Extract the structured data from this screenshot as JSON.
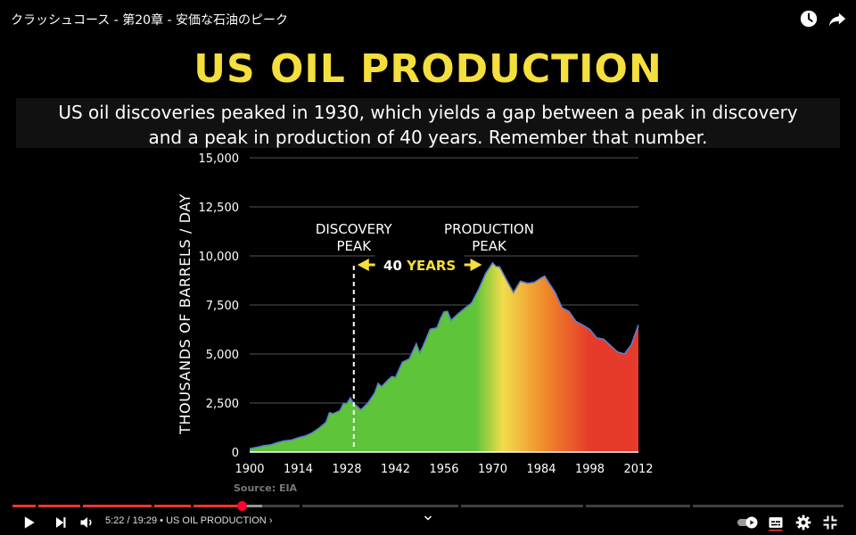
{
  "video": {
    "title": "クラッシュコース - 第20章 - 安価な石油のピーク"
  },
  "icons": {
    "watch_later": "clock-icon",
    "share": "share-icon",
    "play": "play-icon",
    "next": "next-icon",
    "volume": "volume-icon",
    "autoplay": "autoplay-toggle-icon",
    "subtitles": "subtitles-icon",
    "settings": "gear-icon",
    "exit_fullscreen": "exit-fullscreen-icon",
    "chevron": "chevron-down-icon"
  },
  "caption": {
    "line1": "US oil discoveries peaked in 1930, which yields a gap between a peak in discovery",
    "line2": "and a peak in production of 40 years. Remember that number."
  },
  "player": {
    "time_current": "5:22",
    "time_separator": " / ",
    "time_total": "19:29",
    "chapter_separator": " • ",
    "chapter": "US OIL PRODUCTION",
    "chapter_chevron": " ›",
    "played_fraction": 0.2755,
    "buffered_fraction": 0.3
  },
  "colors": {
    "title_yellow": "#f4df3c",
    "area_green": "#5ec43a",
    "area_yellow": "#f3dc4a",
    "area_orange": "#f08a2a",
    "area_red": "#e63a2a",
    "outline_blue": "#5b7fd0",
    "progress_red": "#e33333"
  },
  "chart_data": {
    "type": "area",
    "title": "US OIL PRODUCTION",
    "ylabel": "THOUSANDS OF BARRELS / DAY",
    "xlabel": "",
    "source": "Source: EIA",
    "xlim": [
      1900,
      2012
    ],
    "ylim": [
      0,
      15000
    ],
    "xticks": [
      "1900",
      "1914",
      "1928",
      "1942",
      "1956",
      "1970",
      "1984",
      "1998",
      "2012"
    ],
    "yticks": [
      "0",
      "2,500",
      "5,000",
      "7,500",
      "10,000",
      "12,500",
      "15,000"
    ],
    "grid": true,
    "x": [
      1900,
      1902,
      1904,
      1906,
      1908,
      1910,
      1912,
      1914,
      1916,
      1918,
      1920,
      1922,
      1923,
      1924,
      1926,
      1927,
      1928,
      1929,
      1930,
      1931,
      1932,
      1934,
      1936,
      1937,
      1938,
      1940,
      1941,
      1942,
      1944,
      1946,
      1948,
      1949,
      1950,
      1952,
      1954,
      1955,
      1956,
      1957,
      1958,
      1960,
      1962,
      1964,
      1966,
      1968,
      1970,
      1971,
      1972,
      1974,
      1976,
      1978,
      1980,
      1982,
      1984,
      1985,
      1986,
      1988,
      1990,
      1992,
      1994,
      1996,
      1998,
      2000,
      2002,
      2004,
      2006,
      2008,
      2010,
      2012
    ],
    "series": [
      {
        "values": [
          170,
          240,
          320,
          370,
          480,
          570,
          610,
          730,
          820,
          980,
          1220,
          1520,
          2010,
          1950,
          2110,
          2470,
          2470,
          2760,
          2460,
          2330,
          2150,
          2490,
          3000,
          3500,
          3330,
          3700,
          3850,
          3800,
          4580,
          4750,
          5520,
          5050,
          5410,
          6260,
          6340,
          6810,
          7150,
          7170,
          6710,
          7040,
          7330,
          7610,
          8300,
          9100,
          9640,
          9460,
          9440,
          8770,
          8130,
          8710,
          8600,
          8650,
          8880,
          8970,
          8680,
          8140,
          7350,
          7170,
          6660,
          6470,
          6250,
          5820,
          5750,
          5420,
          5100,
          5000,
          5480,
          6480
        ]
      }
    ],
    "annotations": [
      {
        "label_line1": "DISCOVERY",
        "label_line2": "PEAK",
        "x": 1930
      },
      {
        "label_line1": "PRODUCTION",
        "label_line2": "PEAK",
        "x": 1970
      }
    ],
    "gap": {
      "number": "40",
      "word": "YEARS",
      "from": 1930,
      "to": 1970
    }
  }
}
